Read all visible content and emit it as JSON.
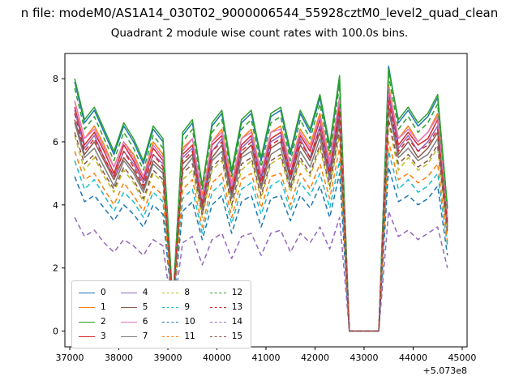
{
  "figure": {
    "title_line1": "n file: modeM0/AS1A14_030T02_9000006544_55928cztM0_level2_quad_clean",
    "title_line2": "Quadrant 2 module wise count rates with 100.0s bins.",
    "background": "#ffffff"
  },
  "chart_data": {
    "type": "line",
    "title": "Quadrant 2 module wise count rates with 100.0s bins.",
    "xlabel": "",
    "ylabel": "",
    "x_offset_label": "+5.073e8",
    "xlim": [
      36900,
      45100
    ],
    "ylim": [
      -0.5,
      8.8
    ],
    "x_ticks": [
      37000,
      38000,
      39000,
      40000,
      41000,
      42000,
      43000,
      44000,
      45000
    ],
    "y_ticks": [
      0,
      2,
      4,
      6,
      8
    ],
    "grid": false,
    "legend_position": "lower left",
    "legend_columns": 4,
    "x": [
      37100,
      37300,
      37500,
      37700,
      37900,
      38100,
      38300,
      38500,
      38700,
      38900,
      39100,
      39300,
      39500,
      39700,
      39900,
      40100,
      40300,
      40500,
      40700,
      40900,
      41100,
      41300,
      41500,
      41700,
      41900,
      42100,
      42300,
      42500,
      42700,
      42900,
      43100,
      43300,
      43500,
      43700,
      43900,
      44100,
      44300,
      44500,
      44700
    ],
    "series": [
      {
        "name": "0",
        "color": "#1f77b4",
        "dash": "solid",
        "values": [
          7.9,
          6.6,
          7.0,
          6.3,
          5.6,
          6.5,
          6.0,
          5.3,
          6.4,
          6.0,
          0.9,
          6.2,
          6.6,
          4.6,
          6.5,
          6.9,
          5.0,
          6.6,
          6.9,
          5.4,
          6.8,
          7.0,
          5.6,
          6.9,
          6.3,
          7.4,
          5.8,
          8.0,
          0.0,
          0.0,
          0.0,
          0.0,
          8.4,
          6.6,
          7.0,
          6.5,
          6.8,
          7.4,
          3.9
        ]
      },
      {
        "name": "1",
        "color": "#ff7f0e",
        "dash": "solid",
        "values": [
          7.3,
          6.1,
          6.5,
          5.9,
          5.2,
          6.0,
          5.6,
          4.9,
          6.0,
          5.6,
          0.8,
          5.8,
          6.1,
          4.3,
          6.0,
          6.4,
          4.7,
          6.1,
          6.4,
          5.0,
          6.3,
          6.5,
          5.2,
          6.4,
          5.9,
          6.9,
          5.4,
          7.4,
          0.0,
          0.0,
          0.0,
          0.0,
          7.8,
          6.1,
          6.5,
          6.0,
          6.3,
          6.9,
          3.6
        ]
      },
      {
        "name": "2",
        "color": "#2ca02c",
        "dash": "solid",
        "values": [
          8.0,
          6.7,
          7.1,
          6.4,
          5.7,
          6.6,
          6.1,
          5.4,
          6.5,
          6.1,
          0.9,
          6.3,
          6.7,
          4.6,
          6.6,
          7.0,
          5.1,
          6.7,
          7.0,
          5.5,
          6.9,
          7.1,
          5.7,
          7.0,
          6.4,
          7.5,
          5.9,
          8.1,
          0.0,
          0.0,
          0.0,
          0.0,
          8.3,
          6.7,
          7.1,
          6.6,
          6.9,
          7.5,
          3.9
        ]
      },
      {
        "name": "3",
        "color": "#d62728",
        "dash": "solid",
        "values": [
          7.1,
          5.9,
          6.3,
          5.7,
          5.0,
          5.9,
          5.4,
          4.8,
          5.8,
          5.4,
          0.8,
          5.6,
          5.9,
          4.1,
          5.9,
          6.2,
          4.5,
          5.9,
          6.2,
          4.9,
          6.1,
          6.3,
          5.0,
          6.2,
          5.7,
          6.7,
          5.2,
          7.2,
          0.0,
          0.0,
          0.0,
          0.0,
          7.6,
          5.9,
          6.3,
          5.9,
          6.1,
          6.7,
          3.5
        ]
      },
      {
        "name": "4",
        "color": "#9467bd",
        "dash": "solid",
        "values": [
          7.0,
          5.8,
          6.2,
          5.5,
          4.9,
          5.7,
          5.3,
          4.7,
          5.6,
          5.3,
          0.8,
          5.5,
          5.8,
          4.0,
          5.7,
          6.1,
          4.4,
          5.8,
          6.1,
          4.8,
          6.0,
          6.2,
          4.9,
          6.1,
          5.5,
          6.5,
          5.1,
          7.0,
          0.0,
          0.0,
          0.0,
          0.0,
          7.4,
          5.8,
          6.2,
          5.7,
          6.0,
          6.5,
          3.4
        ]
      },
      {
        "name": "5",
        "color": "#8c564b",
        "dash": "solid",
        "values": [
          6.7,
          5.6,
          6.0,
          5.4,
          4.8,
          5.5,
          5.1,
          4.5,
          5.4,
          5.1,
          0.8,
          5.3,
          5.6,
          3.9,
          5.5,
          5.9,
          4.3,
          5.6,
          5.9,
          4.6,
          5.8,
          6.0,
          4.8,
          5.9,
          5.4,
          6.3,
          4.9,
          6.8,
          0.0,
          0.0,
          0.0,
          0.0,
          7.1,
          5.6,
          6.0,
          5.5,
          5.8,
          6.3,
          3.3
        ]
      },
      {
        "name": "6",
        "color": "#e377c2",
        "dash": "solid",
        "values": [
          7.3,
          6.1,
          6.4,
          5.8,
          5.2,
          6.0,
          5.5,
          4.9,
          5.9,
          5.5,
          0.8,
          5.7,
          6.1,
          4.2,
          6.0,
          6.3,
          4.6,
          6.1,
          6.3,
          5.0,
          6.3,
          6.4,
          5.2,
          6.3,
          5.8,
          6.8,
          5.3,
          7.4,
          0.0,
          0.0,
          0.0,
          0.0,
          7.7,
          6.1,
          6.4,
          6.0,
          6.3,
          6.8,
          3.6
        ]
      },
      {
        "name": "7",
        "color": "#7f7f7f",
        "dash": "solid",
        "values": [
          6.6,
          5.5,
          5.8,
          5.2,
          4.6,
          5.4,
          5.0,
          4.4,
          5.3,
          5.0,
          0.7,
          5.1,
          5.5,
          3.8,
          5.4,
          5.7,
          4.2,
          5.5,
          5.7,
          4.5,
          5.6,
          5.8,
          4.6,
          5.7,
          5.2,
          6.1,
          4.8,
          6.6,
          0.0,
          0.0,
          0.0,
          0.0,
          7.0,
          5.5,
          5.8,
          5.4,
          5.6,
          6.1,
          3.2
        ]
      },
      {
        "name": "8",
        "color": "#bcbd22",
        "dash": "dashed",
        "values": [
          6.2,
          5.1,
          5.5,
          4.9,
          4.4,
          5.1,
          4.7,
          4.1,
          5.0,
          4.7,
          0.7,
          4.8,
          5.1,
          3.6,
          5.1,
          5.4,
          3.9,
          5.1,
          5.4,
          4.2,
          5.3,
          5.5,
          4.4,
          5.4,
          4.9,
          5.8,
          4.5,
          6.2,
          0.0,
          0.0,
          0.0,
          0.0,
          6.6,
          5.1,
          5.5,
          5.1,
          5.3,
          5.8,
          3.0
        ]
      },
      {
        "name": "9",
        "color": "#17becf",
        "dash": "dashed",
        "values": [
          5.4,
          4.5,
          4.8,
          4.3,
          3.8,
          4.4,
          4.1,
          3.6,
          4.4,
          4.1,
          0.6,
          4.2,
          4.5,
          3.1,
          4.4,
          4.7,
          3.4,
          4.5,
          4.7,
          3.7,
          4.6,
          4.8,
          3.8,
          4.7,
          4.3,
          5.0,
          3.9,
          5.4,
          0.0,
          0.0,
          0.0,
          0.0,
          5.7,
          4.5,
          4.8,
          4.4,
          4.6,
          5.0,
          2.7
        ]
      },
      {
        "name": "10",
        "color": "#1f77b4",
        "dash": "dashed",
        "values": [
          4.9,
          4.1,
          4.3,
          3.9,
          3.5,
          4.0,
          3.7,
          3.3,
          4.0,
          3.7,
          0.6,
          3.8,
          4.1,
          2.9,
          4.0,
          4.3,
          3.1,
          4.1,
          4.3,
          3.3,
          4.2,
          4.3,
          3.5,
          4.3,
          3.9,
          4.6,
          3.6,
          5.0,
          0.0,
          0.0,
          0.0,
          0.0,
          5.2,
          4.1,
          4.3,
          4.0,
          4.2,
          4.6,
          2.4
        ]
      },
      {
        "name": "11",
        "color": "#ff7f0e",
        "dash": "dashed",
        "values": [
          5.7,
          4.8,
          5.0,
          4.5,
          4.0,
          4.7,
          4.3,
          3.8,
          4.6,
          4.3,
          0.6,
          4.5,
          4.8,
          3.3,
          4.7,
          5.0,
          3.6,
          4.8,
          5.0,
          3.9,
          4.9,
          5.0,
          4.0,
          5.0,
          4.5,
          5.3,
          4.2,
          5.8,
          0.0,
          0.0,
          0.0,
          0.0,
          6.0,
          4.8,
          5.0,
          4.7,
          4.9,
          5.3,
          2.8
        ]
      },
      {
        "name": "12",
        "color": "#2ca02c",
        "dash": "dashed",
        "values": [
          7.7,
          6.4,
          6.8,
          6.1,
          5.4,
          6.3,
          5.8,
          5.1,
          6.2,
          5.8,
          0.9,
          6.0,
          6.4,
          4.5,
          6.3,
          6.7,
          4.9,
          6.4,
          6.7,
          5.2,
          6.6,
          6.8,
          5.4,
          6.7,
          6.1,
          7.2,
          5.6,
          7.8,
          0.0,
          0.0,
          0.0,
          0.0,
          8.1,
          6.4,
          6.8,
          6.3,
          6.6,
          7.2,
          3.8
        ]
      },
      {
        "name": "13",
        "color": "#d62728",
        "dash": "dashed",
        "values": [
          6.9,
          5.7,
          6.1,
          5.5,
          4.9,
          5.7,
          5.2,
          4.6,
          5.6,
          5.2,
          0.8,
          5.4,
          5.7,
          4.0,
          5.7,
          6.0,
          4.4,
          5.7,
          6.0,
          4.7,
          5.9,
          6.1,
          4.9,
          6.0,
          5.5,
          6.4,
          5.0,
          7.0,
          0.0,
          0.0,
          0.0,
          0.0,
          7.3,
          5.7,
          6.1,
          5.7,
          5.9,
          6.4,
          3.4
        ]
      },
      {
        "name": "14",
        "color": "#9467bd",
        "dash": "dashed",
        "values": [
          3.6,
          3.0,
          3.2,
          2.8,
          2.5,
          2.9,
          2.7,
          2.4,
          2.9,
          2.7,
          0.4,
          2.8,
          3.0,
          2.1,
          2.9,
          3.1,
          2.3,
          3.0,
          3.1,
          2.4,
          3.1,
          3.2,
          2.5,
          3.1,
          2.8,
          3.3,
          2.6,
          3.6,
          0.0,
          0.0,
          0.0,
          0.0,
          3.8,
          3.0,
          3.2,
          2.9,
          3.1,
          3.3,
          2.0
        ]
      },
      {
        "name": "15",
        "color": "#8c564b",
        "dash": "dashed",
        "values": [
          6.3,
          5.3,
          5.6,
          5.0,
          4.5,
          5.2,
          4.8,
          4.2,
          5.1,
          4.8,
          0.7,
          5.0,
          5.3,
          3.7,
          5.2,
          5.5,
          4.0,
          5.3,
          5.5,
          4.3,
          5.4,
          5.6,
          4.5,
          5.5,
          5.0,
          5.9,
          4.6,
          6.4,
          0.0,
          0.0,
          0.0,
          0.0,
          6.7,
          5.3,
          5.6,
          5.2,
          5.4,
          5.9,
          3.1
        ]
      }
    ]
  }
}
